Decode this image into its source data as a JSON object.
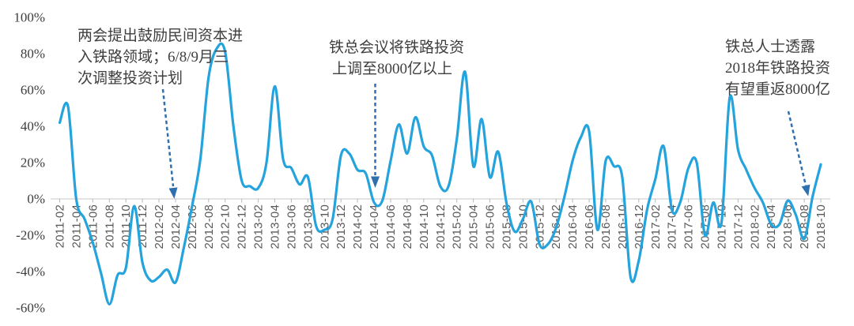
{
  "chart_data": {
    "type": "line",
    "title": "",
    "legend": "none",
    "grid": "off",
    "y_axis": {
      "tick_labels": [
        "100%",
        "80%",
        "60%",
        "40%",
        "20%",
        "0%",
        "-20%",
        "-40%",
        "-60%"
      ],
      "tick_values": [
        100,
        80,
        60,
        40,
        20,
        0,
        -20,
        -40,
        -60
      ],
      "min": -60,
      "max": 100
    },
    "x_axis": {
      "tick_labels": [
        "2011-02",
        "2011-04",
        "2011-06",
        "2011-08",
        "2011-10",
        "2011-12",
        "2012-02",
        "2012-04",
        "2012-06",
        "2012-08",
        "2012-10",
        "2012-12",
        "2013-02",
        "2013-04",
        "2013-06",
        "2013-08",
        "2013-10",
        "2013-12",
        "2014-02",
        "2014-04",
        "2014-06",
        "2014-08",
        "2014-10",
        "2014-12",
        "2015-02",
        "2015-04",
        "2015-06",
        "2015-08",
        "2015-10",
        "2015-12",
        "2016-02",
        "2016-04",
        "2016-06",
        "2016-08",
        "2016-10",
        "2016-12",
        "2017-02",
        "2017-04",
        "2017-06",
        "2017-08",
        "2017-10",
        "2017-12",
        "2018-02",
        "2018-04",
        "2018-06",
        "2018-08",
        "2018-10"
      ],
      "labels_every_n_points": 2
    },
    "series": [
      {
        "start_month": "2011-02",
        "end_month": "2018-10",
        "frequency": "monthly",
        "values_pct": [
          42,
          51,
          0,
          -11,
          -24,
          -41,
          -58,
          -42,
          -38,
          -4,
          -35,
          -45,
          -43,
          -39,
          -46,
          -27,
          -4,
          22,
          67,
          83,
          81,
          40,
          10,
          7,
          6,
          20,
          62,
          22,
          17,
          8,
          12,
          -15,
          -17,
          -11,
          24,
          25,
          16,
          14,
          -2,
          -1,
          21,
          41,
          25,
          45,
          29,
          24,
          7,
          7,
          33,
          70,
          18,
          44,
          12,
          26,
          -2,
          -18,
          -11,
          -1.5,
          -25,
          -25,
          -16,
          1,
          21,
          34,
          37,
          -17,
          21,
          18,
          12,
          -43,
          -34,
          -6,
          11,
          29,
          -6,
          -2,
          17,
          20,
          -20,
          -2,
          -13,
          56,
          27,
          16,
          6,
          -2,
          -14,
          -14,
          -1,
          -9,
          -22,
          1,
          19
        ]
      }
    ]
  },
  "annotations": [
    {
      "lines": [
        "两会提出鼓励民间资本进",
        "入铁路领域；6/8/9月三",
        "次调整投资计划"
      ],
      "points_to": "2012-04"
    },
    {
      "lines": [
        "铁总会议将铁路投资",
        "上调至8000亿以上"
      ],
      "points_to": "2014-04"
    },
    {
      "lines": [
        "铁总人士透露",
        "2018年铁路投资",
        "有望重返8000亿"
      ],
      "points_to": "2018-08"
    }
  ],
  "colors": {
    "line": "#25a3dc",
    "arrow": "#2e6fad",
    "axis_line": "#d2d2d2",
    "tick": "#b7b7b7",
    "x_label": "#595959",
    "y_label": "#3d3d3d",
    "annotation_text": "#3f3f3f",
    "background": "#ffffff"
  }
}
